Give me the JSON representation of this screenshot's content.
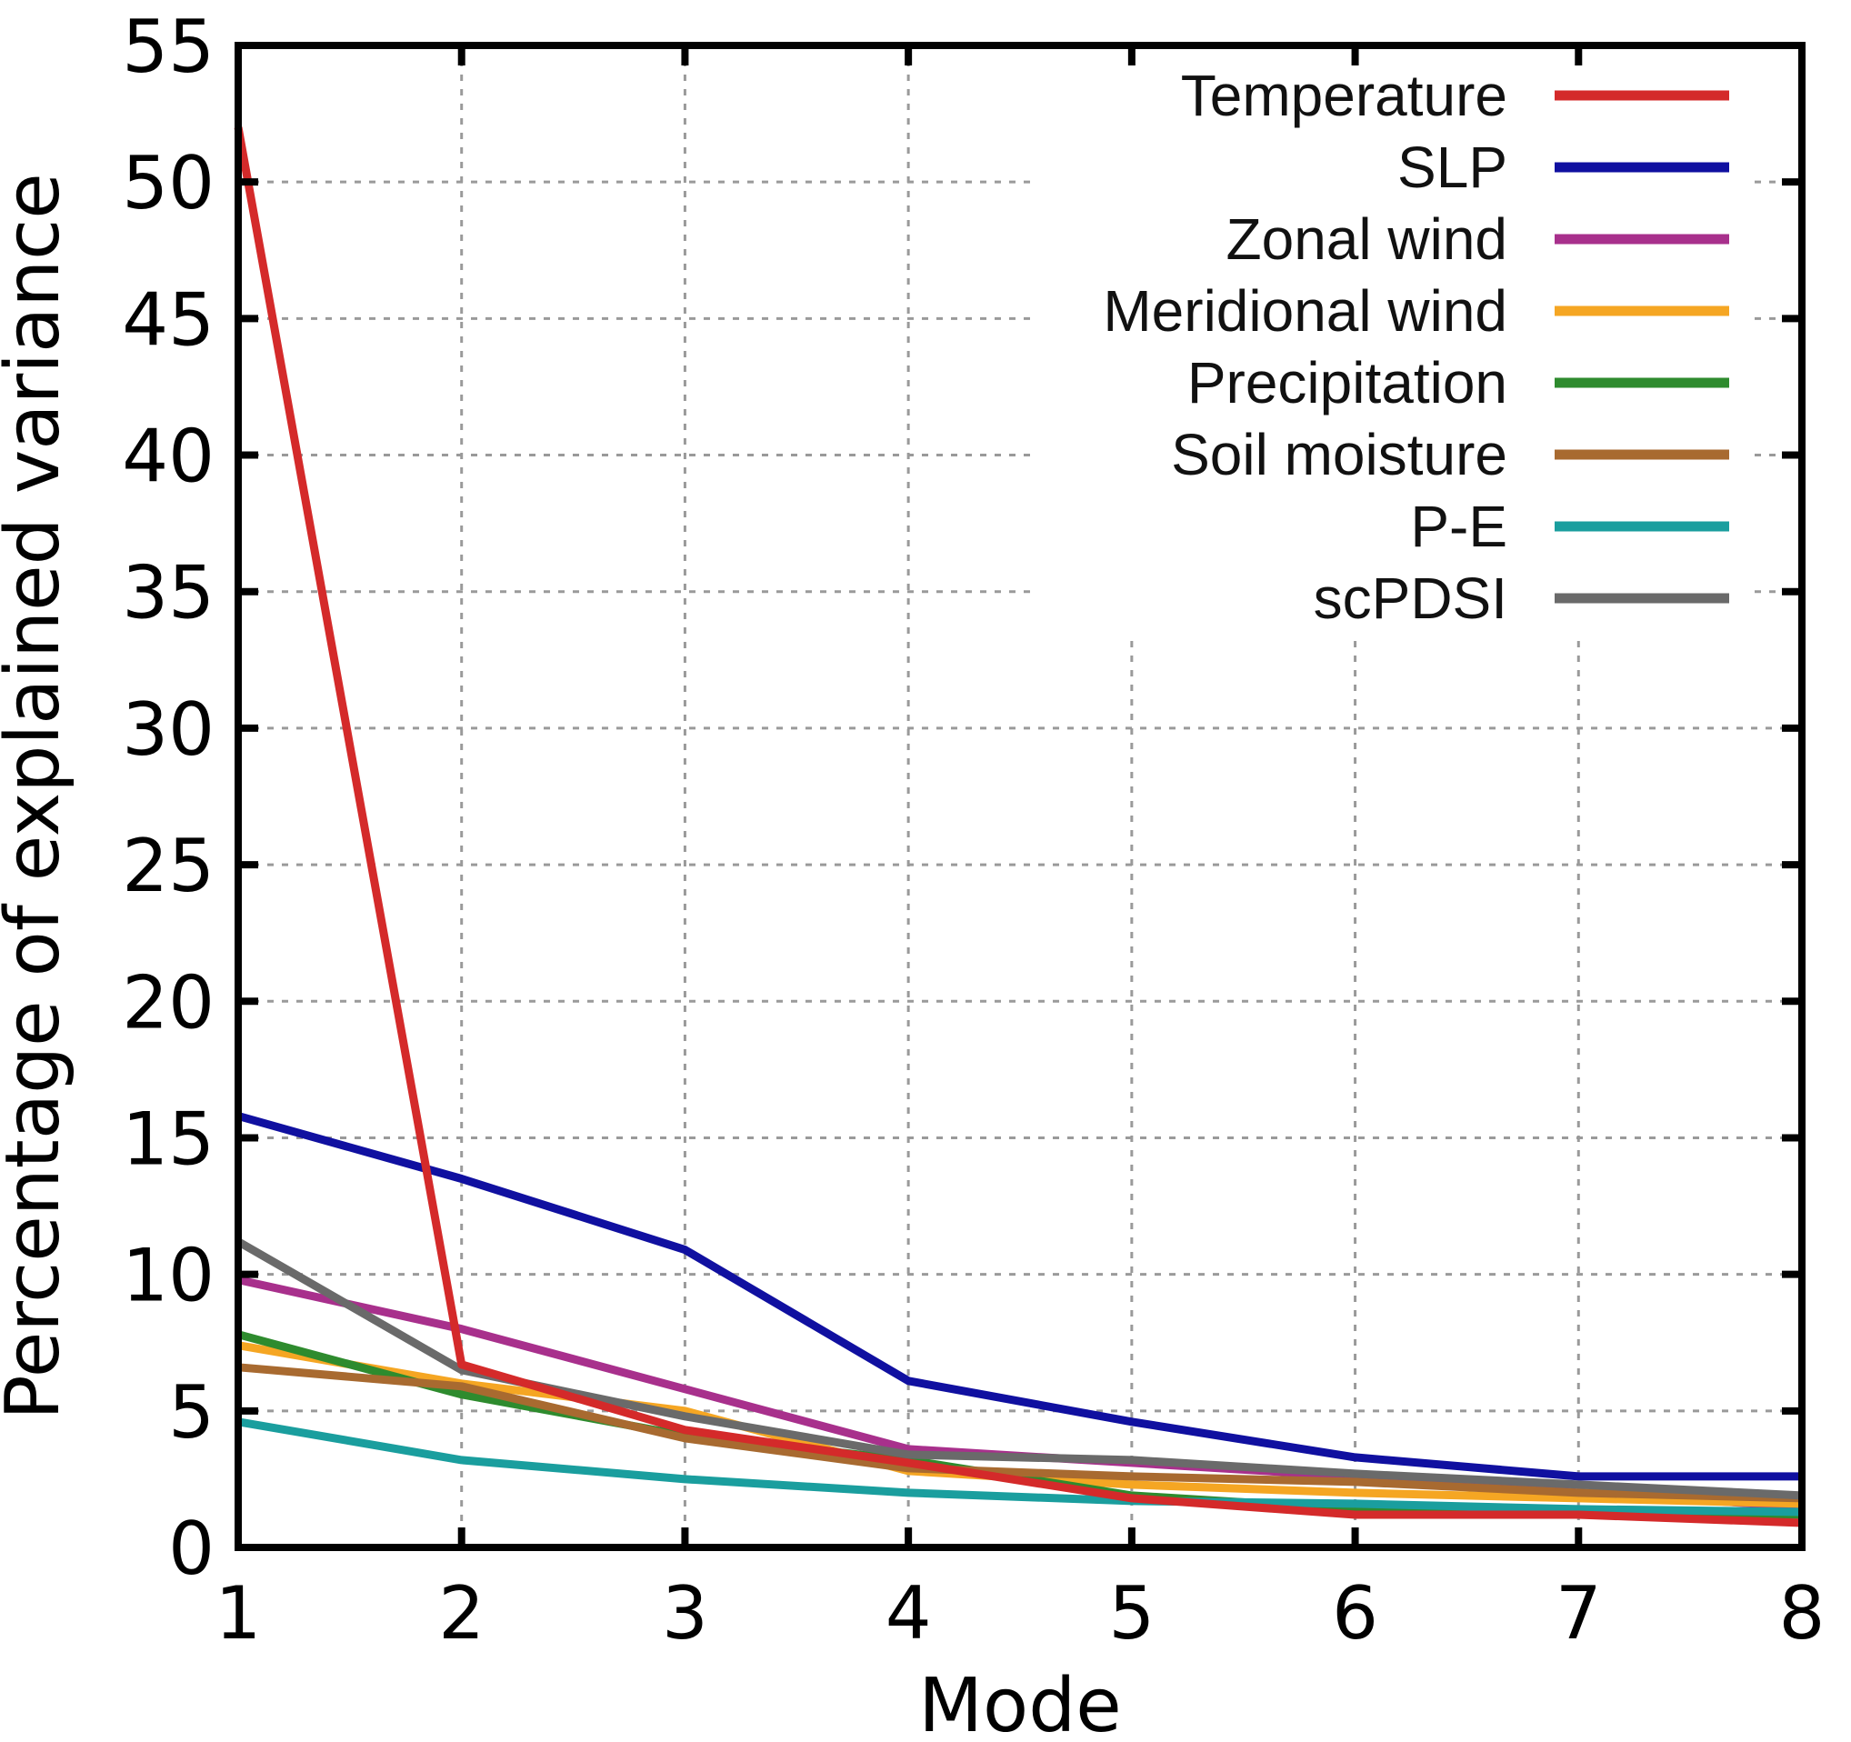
{
  "chart_data": {
    "type": "line",
    "xlabel": "Mode",
    "ylabel": "Percentage of explained variance",
    "xlim": [
      1,
      8
    ],
    "ylim": [
      0,
      55
    ],
    "x_ticks": [
      "1",
      "2",
      "3",
      "4",
      "5",
      "6",
      "7",
      "8"
    ],
    "y_ticks": [
      "0",
      "5",
      "10",
      "15",
      "20",
      "25",
      "30",
      "35",
      "40",
      "45",
      "50",
      "55"
    ],
    "grid": true,
    "legend_position": "top-right",
    "x": [
      1,
      2,
      3,
      4,
      5,
      6,
      7,
      8
    ],
    "series": [
      {
        "name": "Temperature",
        "color": "#d42a2a",
        "values": [
          52.0,
          6.7,
          4.3,
          3.1,
          1.8,
          1.2,
          1.2,
          0.9
        ]
      },
      {
        "name": "SLP",
        "color": "#1010a0",
        "values": [
          15.8,
          13.5,
          10.9,
          6.1,
          4.6,
          3.3,
          2.6,
          2.6
        ]
      },
      {
        "name": "Zonal wind",
        "color": "#a8308c",
        "values": [
          9.8,
          8.0,
          5.8,
          3.6,
          3.1,
          2.6,
          2.0,
          1.5
        ]
      },
      {
        "name": "Meridional wind",
        "color": "#f5a623",
        "values": [
          7.4,
          6.0,
          5.0,
          2.8,
          2.3,
          2.0,
          1.8,
          1.6
        ]
      },
      {
        "name": "Precipitation",
        "color": "#2e8b2e",
        "values": [
          7.8,
          5.6,
          4.1,
          3.2,
          1.9,
          1.4,
          1.3,
          1.2
        ]
      },
      {
        "name": "Soil moisture",
        "color": "#a86a30",
        "values": [
          6.6,
          5.9,
          4.0,
          2.9,
          2.6,
          2.4,
          2.0,
          1.8
        ]
      },
      {
        "name": "P-E",
        "color": "#1a9e9e",
        "values": [
          4.6,
          3.2,
          2.5,
          2.0,
          1.7,
          1.6,
          1.4,
          1.3
        ]
      },
      {
        "name": "scPDSI",
        "color": "#6a6a6a",
        "values": [
          11.2,
          6.5,
          4.8,
          3.4,
          3.2,
          2.7,
          2.3,
          1.9
        ]
      }
    ]
  }
}
